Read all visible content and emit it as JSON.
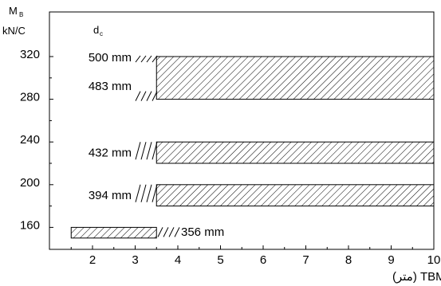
{
  "chart_data": {
    "type": "area",
    "title": "",
    "ylabel": "M",
    "ylabel_subscript": "B",
    "yunit": "kN/C",
    "series_header": "d",
    "series_header_subscript": "c",
    "xlabel": "قطر TBM (متر)",
    "xlim": [
      1,
      10
    ],
    "ylim": [
      150,
      330
    ],
    "xticks": [
      "2",
      "3",
      "4",
      "5",
      "6",
      "7",
      "8",
      "9",
      "10"
    ],
    "yticks": [
      "160",
      "200",
      "240",
      "280",
      "320"
    ],
    "grid": false,
    "bands": [
      {
        "label": "500 mm",
        "x_start": 3.5,
        "x_end": 10,
        "y_low": 280,
        "y_high": 320
      },
      {
        "label": "483 mm",
        "x_start": 3.5,
        "x_end": 10,
        "y_low": 280,
        "y_high": 320
      },
      {
        "label": "432 mm",
        "x_start": 3.5,
        "x_end": 10,
        "y_low": 220,
        "y_high": 240
      },
      {
        "label": "394 mm",
        "x_start": 3.5,
        "x_end": 10,
        "y_low": 180,
        "y_high": 200
      },
      {
        "label": "356 mm",
        "x_start": 1.5,
        "x_end": 3.5,
        "y_low": 150,
        "y_high": 160
      }
    ]
  }
}
